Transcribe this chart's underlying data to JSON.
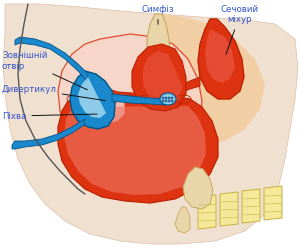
{
  "background_color": "#ffffff",
  "labels": {
    "symfiz": "Симфіз",
    "sechovyi_mihur": "Сечовий\nміхур",
    "zovnishniy_otvir": "Зовнішній\nотвір",
    "dyvertykul": "Дивертикул",
    "pikhva": "Піхва"
  },
  "label_color": "#3355cc",
  "colors": {
    "blue_dark": "#1a88cc",
    "blue_med": "#30aadd",
    "blue_light": "#88ccee",
    "blue_highlight": "#c0e8f8",
    "red_dark": "#bb2200",
    "red_mid": "#dd3311",
    "red_light": "#ee6655",
    "pink_outer": "#f5b8b0",
    "pink_bg": "#f8d5c8",
    "peach_glow": "#f5c090",
    "bone_fill": "#e8d5a8",
    "bone_edge": "#c8a860",
    "vertebra_fill": "#f5e898",
    "vertebra_edge": "#c8b040",
    "skin_fill": "#f0e0d0",
    "skin_edge": "#ddc0a8",
    "gray_line": "#888888",
    "black": "#111111"
  }
}
